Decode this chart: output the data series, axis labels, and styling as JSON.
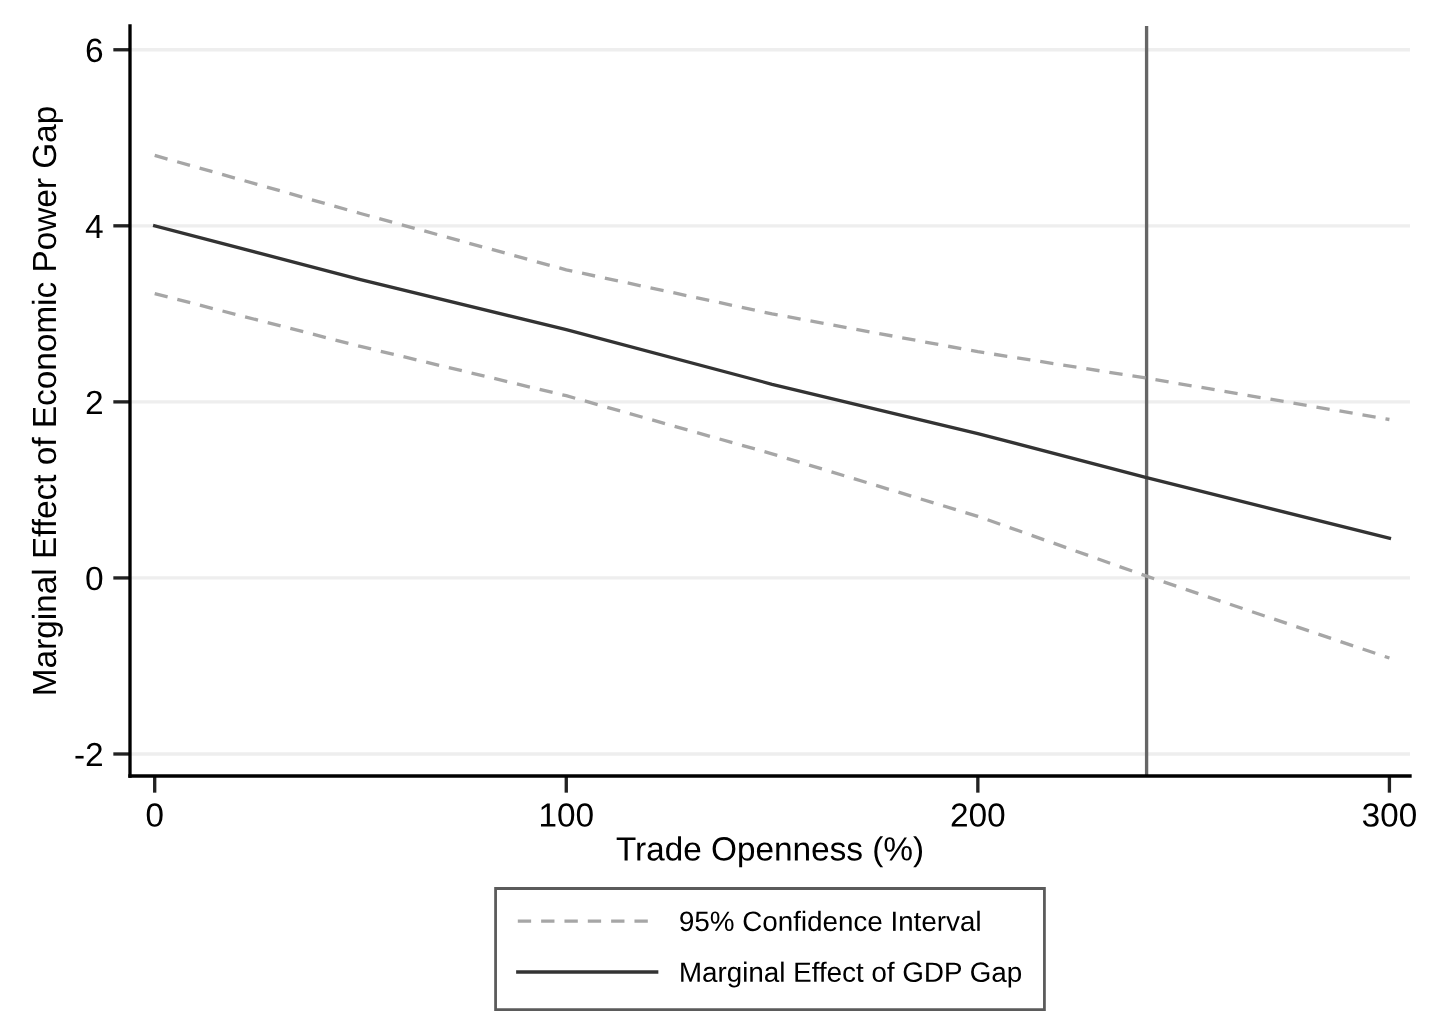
{
  "chart_data": {
    "type": "line",
    "xlabel": "Trade Openness (%)",
    "ylabel": "Marginal Effect of Economic Power Gap",
    "x": [
      0,
      50,
      100,
      150,
      200,
      241,
      300
    ],
    "series": [
      {
        "name": "95% Confidence Interval",
        "color": "#a6a6a6",
        "line_style": "dashed",
        "values": [
          4.8,
          4.14,
          3.5,
          3.0,
          2.57,
          2.27,
          1.8
        ]
      },
      {
        "color": "#a6a6a6",
        "line_style": "dashed",
        "values": [
          3.23,
          2.63,
          2.07,
          1.41,
          0.7,
          0.02,
          -0.91
        ]
      },
      {
        "name": "Marginal Effect of GDP Gap",
        "color": "#333333",
        "line_style": "solid",
        "values": [
          4.0,
          3.39,
          2.82,
          2.2,
          1.64,
          1.14,
          0.45
        ]
      }
    ],
    "xlim": [
      -6,
      305
    ],
    "ylim": [
      -2.25,
      6.27
    ],
    "xticks": [
      0,
      100,
      200,
      300
    ],
    "yticks": [
      -2,
      0,
      2,
      4,
      6
    ],
    "ref_lines": [
      {
        "axis": "x",
        "value": 241,
        "color": "#666666"
      }
    ],
    "grid": "y",
    "legend": "bottom",
    "marker": "none"
  }
}
